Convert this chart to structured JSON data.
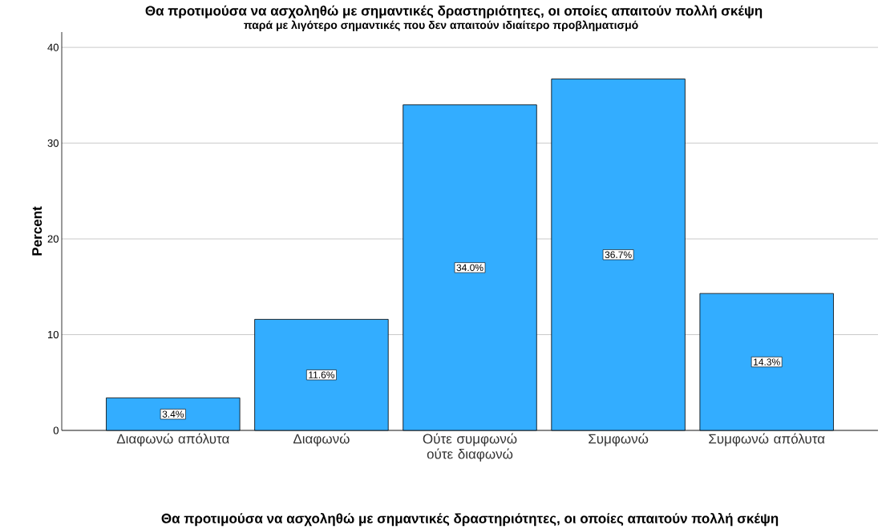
{
  "chart_data": {
    "type": "bar",
    "title": "Θα προτιμούσα να ασχοληθώ με σημαντικές δραστηριότητες, οι οποίες απαιτούν πολλή σκέψη",
    "subtitle": "παρά με λιγότερο σημαντικές που δεν απαιτούν ιδιαίτερο προβληματισμό",
    "xlabel": "Θα προτιμούσα να ασχοληθώ με σημαντικές δραστηριότητες, οι οποίες απαιτούν πολλή σκέψη",
    "ylabel": "Percent",
    "categories": [
      "Διαφωνώ απόλυτα",
      "Διαφωνώ",
      "Ούτε συμφωνώ ούτε διαφωνώ",
      "Συμφωνώ",
      "Συμφωνώ απόλυτα"
    ],
    "values": [
      3.4,
      11.6,
      34.0,
      36.7,
      14.3
    ],
    "value_labels": [
      "3.4%",
      "11.6%",
      "34.0%",
      "36.7%",
      "14.3%"
    ],
    "color": "#33adff",
    "ylim": [
      0,
      41.6
    ],
    "yticks": [
      0,
      10,
      20,
      30,
      40
    ],
    "grid": "y"
  }
}
